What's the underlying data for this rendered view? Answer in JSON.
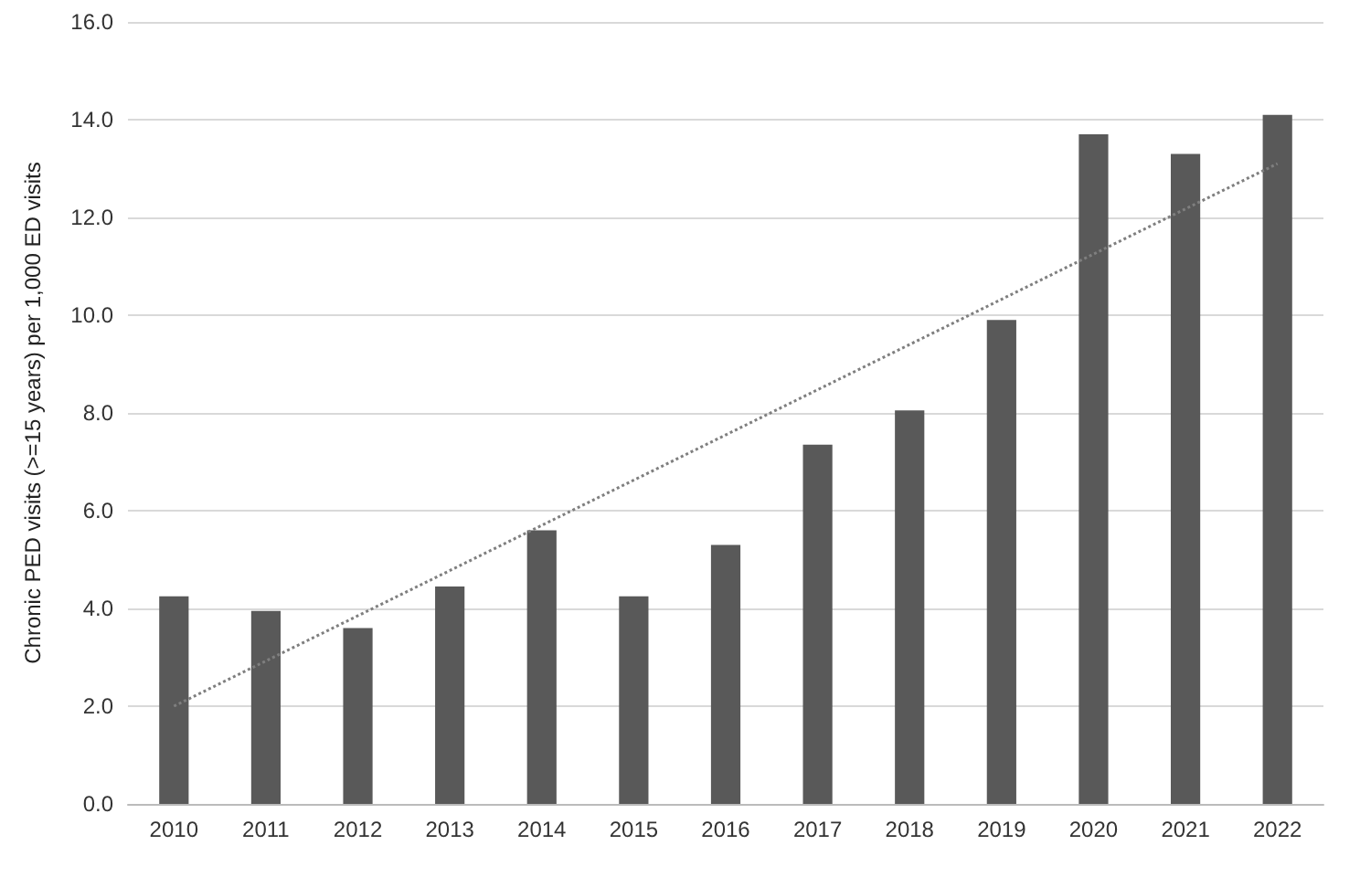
{
  "chart_data": {
    "type": "bar",
    "ylabel": "Chronic PED visits (>=15 years) per 1,000 ED visits",
    "categories": [
      "2010",
      "2011",
      "2012",
      "2013",
      "2014",
      "2015",
      "2016",
      "2017",
      "2018",
      "2019",
      "2020",
      "2021",
      "2022"
    ],
    "series": [
      {
        "color": "#595959",
        "values": [
          4.25,
          3.95,
          3.6,
          4.45,
          5.6,
          4.25,
          5.3,
          7.35,
          8.05,
          9.9,
          13.7,
          13.3,
          14.1
        ]
      },
      {
        "type": "line",
        "color": "#7f7f7f",
        "line_style": "dotted",
        "marker": "none",
        "values": [
          2.0,
          null,
          null,
          null,
          null,
          null,
          null,
          null,
          null,
          null,
          null,
          null,
          13.1
        ]
      }
    ],
    "ylim": [
      0,
      16
    ],
    "yticks": [
      {
        "value": 0,
        "label": "0.0"
      },
      {
        "value": 2,
        "label": "2.0"
      },
      {
        "value": 4,
        "label": "4.0"
      },
      {
        "value": 6,
        "label": "6.0"
      },
      {
        "value": 8,
        "label": "8.0"
      },
      {
        "value": 10,
        "label": "10.0"
      },
      {
        "value": 12,
        "label": "12.0"
      },
      {
        "value": 14,
        "label": "14.0"
      },
      {
        "value": 16,
        "label": "16.0"
      }
    ],
    "grid": "y"
  }
}
